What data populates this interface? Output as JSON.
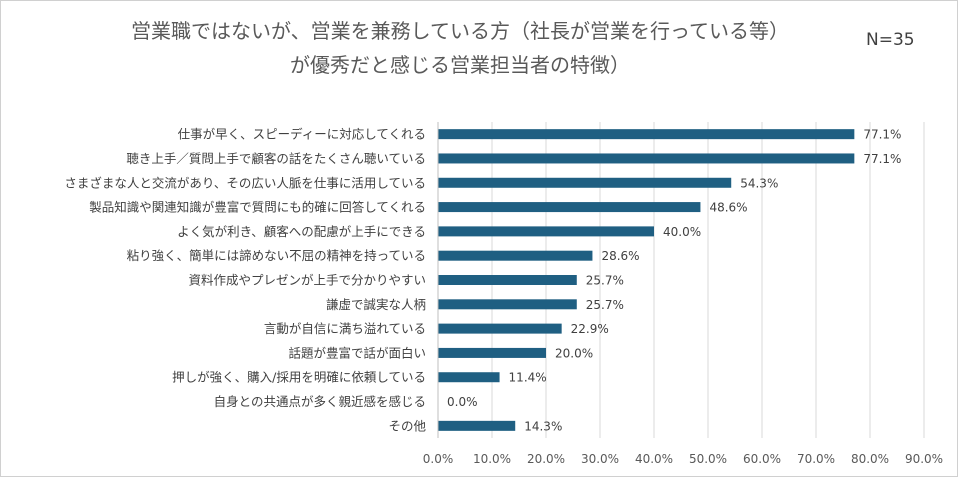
{
  "title_line1": "営業職ではないが、営業を兼務している方（社長が営業を行っている等）",
  "title_line2": "が優秀だと感じる営業担当者の特徴）",
  "n_label": "N=35",
  "chart_data": {
    "type": "bar",
    "orientation": "horizontal",
    "title": "営業職ではないが、営業を兼務している方（社長が営業を行っている等）が優秀だと感じる営業担当者の特徴）",
    "categories": [
      "仕事が早く、スピーディーに対応してくれる",
      "聴き上手／質問上手で顧客の話をたくさん聴いている",
      "さまざまな人と交流があり、その広い人脈を仕事に活用している",
      "製品知識や関連知識が豊富で質問にも的確に回答してくれる",
      "よく気が利き、顧客への配慮が上手にできる",
      "粘り強く、簡単には諦めない不屈の精神を持っている",
      "資料作成やプレゼンが上手で分かりやすい",
      "謙虚で誠実な人柄",
      "言動が自信に満ち溢れている",
      "話題が豊富で話が面白い",
      "押しが強く、購入/採用を明確に依頼している",
      "自身との共通点が多く親近感を感じる",
      "その他"
    ],
    "values": [
      77.1,
      77.1,
      54.3,
      48.6,
      40.0,
      28.6,
      25.7,
      25.7,
      22.9,
      20.0,
      11.4,
      0.0,
      14.3
    ],
    "value_labels": [
      "77.1%",
      "77.1%",
      "54.3%",
      "48.6%",
      "40.0%",
      "28.6%",
      "25.7%",
      "25.7%",
      "22.9%",
      "20.0%",
      "11.4%",
      "0.0%",
      "14.3%"
    ],
    "xlim": [
      0,
      90
    ],
    "xticks": [
      "0.0%",
      "10.0%",
      "20.0%",
      "30.0%",
      "40.0%",
      "50.0%",
      "60.0%",
      "70.0%",
      "80.0%",
      "90.0%"
    ],
    "grid": true,
    "bar_color": "#1f5f82"
  }
}
